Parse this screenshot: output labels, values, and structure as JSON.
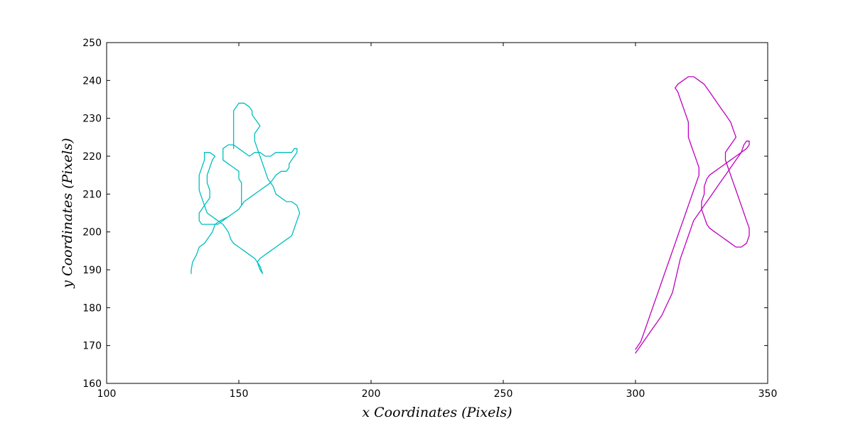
{
  "chart_data": {
    "type": "line",
    "title": "",
    "xlabel": "x Coordinates (Pixels)",
    "ylabel": "y Coordinates (Pixels)",
    "xlim": [
      100,
      350
    ],
    "ylim": [
      160,
      250
    ],
    "xticks": [
      100,
      150,
      200,
      250,
      300,
      350
    ],
    "yticks": [
      160,
      170,
      180,
      190,
      200,
      210,
      220,
      230,
      240,
      250
    ],
    "xtick_labels": [
      "100",
      "150",
      "200",
      "250",
      "300",
      "350"
    ],
    "ytick_labels": [
      "160",
      "170",
      "180",
      "190",
      "200",
      "210",
      "220",
      "230",
      "240",
      "250"
    ],
    "grid": false,
    "legend": "none",
    "series": [
      {
        "color": "#00bfbf",
        "points": [
          [
            132,
            189
          ],
          [
            132,
            190
          ],
          [
            132.5,
            192
          ],
          [
            134,
            194
          ],
          [
            135,
            196
          ],
          [
            137,
            197
          ],
          [
            139,
            199
          ],
          [
            140,
            200
          ],
          [
            141,
            202
          ],
          [
            143,
            203
          ],
          [
            146,
            204
          ],
          [
            148,
            205
          ],
          [
            150,
            206
          ],
          [
            152,
            208
          ],
          [
            154,
            209
          ],
          [
            156,
            210
          ],
          [
            158,
            211
          ],
          [
            160,
            212
          ],
          [
            162,
            213
          ],
          [
            164,
            215
          ],
          [
            166,
            216
          ],
          [
            168,
            216
          ],
          [
            169,
            217
          ],
          [
            169,
            218
          ],
          [
            170,
            219
          ],
          [
            171,
            220
          ],
          [
            172,
            221
          ],
          [
            172,
            222
          ],
          [
            171,
            222
          ],
          [
            170,
            221
          ],
          [
            168,
            221
          ],
          [
            166,
            221
          ],
          [
            164,
            221
          ],
          [
            162,
            220
          ],
          [
            160,
            220
          ],
          [
            158,
            221
          ],
          [
            156,
            221
          ],
          [
            154,
            220
          ],
          [
            152,
            221
          ],
          [
            150,
            222
          ],
          [
            148,
            223
          ],
          [
            146,
            223
          ],
          [
            144,
            222
          ],
          [
            144,
            221
          ],
          [
            144,
            219
          ],
          [
            146,
            218
          ],
          [
            148,
            217
          ],
          [
            150,
            216
          ],
          [
            150,
            214
          ],
          [
            151,
            213
          ],
          [
            151,
            211
          ],
          [
            151,
            209
          ],
          [
            151,
            207
          ],
          [
            150,
            206
          ],
          [
            148,
            205
          ],
          [
            146,
            204
          ],
          [
            144,
            203
          ],
          [
            142,
            202
          ],
          [
            140,
            202
          ],
          [
            138,
            202
          ],
          [
            136,
            202
          ],
          [
            135,
            203
          ],
          [
            135,
            205
          ],
          [
            136,
            206
          ],
          [
            137,
            207
          ],
          [
            138,
            208
          ],
          [
            139,
            209
          ],
          [
            139,
            211
          ],
          [
            138,
            213
          ],
          [
            138,
            215
          ],
          [
            139,
            217
          ],
          [
            140,
            219
          ],
          [
            141,
            220
          ],
          [
            139,
            221
          ],
          [
            137,
            221
          ],
          [
            137,
            219
          ],
          [
            136,
            217
          ],
          [
            135,
            215
          ],
          [
            135,
            213
          ],
          [
            135,
            211
          ],
          [
            136,
            209
          ],
          [
            137,
            207
          ],
          [
            138,
            205
          ],
          [
            140,
            204
          ],
          [
            142,
            203
          ],
          [
            144,
            202
          ],
          [
            145,
            201
          ],
          [
            146,
            200
          ],
          [
            147,
            198
          ],
          [
            148,
            197
          ],
          [
            150,
            196
          ],
          [
            152,
            195
          ],
          [
            154,
            194
          ],
          [
            156,
            193
          ],
          [
            157,
            192
          ],
          [
            158,
            190
          ],
          [
            159,
            189
          ],
          [
            158,
            191
          ],
          [
            157,
            192
          ],
          [
            158,
            193
          ],
          [
            160,
            194
          ],
          [
            162,
            195
          ],
          [
            164,
            196
          ],
          [
            166,
            197
          ],
          [
            168,
            198
          ],
          [
            170,
            199
          ],
          [
            171,
            201
          ],
          [
            172,
            203
          ],
          [
            173,
            205
          ],
          [
            172,
            207
          ],
          [
            170,
            208
          ],
          [
            168,
            208
          ],
          [
            166,
            209
          ],
          [
            164,
            210
          ],
          [
            163,
            212
          ],
          [
            162,
            213
          ],
          [
            161,
            214
          ],
          [
            160,
            216
          ],
          [
            159,
            218
          ],
          [
            158,
            220
          ],
          [
            157,
            222
          ],
          [
            156,
            224
          ],
          [
            156,
            226
          ],
          [
            157,
            227
          ],
          [
            158,
            228
          ],
          [
            157,
            229
          ],
          [
            156,
            230
          ],
          [
            155,
            231
          ],
          [
            155,
            232
          ],
          [
            154,
            233
          ],
          [
            152,
            234
          ],
          [
            150,
            234
          ],
          [
            149,
            233
          ],
          [
            148,
            232
          ],
          [
            148,
            230
          ],
          [
            148,
            228
          ],
          [
            148,
            226
          ],
          [
            148,
            224
          ],
          [
            148,
            222
          ]
        ]
      },
      {
        "color": "#bf00bf",
        "points": [
          [
            300,
            168
          ],
          [
            301,
            169
          ],
          [
            302,
            170
          ],
          [
            304,
            172
          ],
          [
            306,
            174
          ],
          [
            308,
            176
          ],
          [
            310,
            178
          ],
          [
            312,
            181
          ],
          [
            314,
            184
          ],
          [
            315,
            187
          ],
          [
            316,
            190
          ],
          [
            317,
            193
          ],
          [
            318,
            195
          ],
          [
            319,
            197
          ],
          [
            320,
            199
          ],
          [
            321,
            201
          ],
          [
            322,
            203
          ],
          [
            324,
            205
          ],
          [
            326,
            207
          ],
          [
            328,
            209
          ],
          [
            330,
            211
          ],
          [
            332,
            213
          ],
          [
            334,
            215
          ],
          [
            336,
            217
          ],
          [
            338,
            219
          ],
          [
            340,
            221
          ],
          [
            341,
            223
          ],
          [
            342,
            224
          ],
          [
            343,
            224
          ],
          [
            343,
            223
          ],
          [
            342,
            222
          ],
          [
            340,
            221
          ],
          [
            338,
            220
          ],
          [
            336,
            219
          ],
          [
            334,
            218
          ],
          [
            332,
            217
          ],
          [
            330,
            216
          ],
          [
            328,
            215
          ],
          [
            327,
            214
          ],
          [
            326,
            212
          ],
          [
            326,
            210
          ],
          [
            325,
            208
          ],
          [
            325,
            206
          ],
          [
            326,
            204
          ],
          [
            327,
            202
          ],
          [
            328,
            201
          ],
          [
            330,
            200
          ],
          [
            332,
            199
          ],
          [
            334,
            198
          ],
          [
            336,
            197
          ],
          [
            338,
            196
          ],
          [
            340,
            196
          ],
          [
            342,
            197
          ],
          [
            343,
            199
          ],
          [
            343,
            201
          ],
          [
            342,
            203
          ],
          [
            341,
            205
          ],
          [
            340,
            207
          ],
          [
            339,
            209
          ],
          [
            338,
            211
          ],
          [
            337,
            213
          ],
          [
            336,
            215
          ],
          [
            335,
            217
          ],
          [
            334,
            219
          ],
          [
            334,
            221
          ],
          [
            335,
            222
          ],
          [
            336,
            223
          ],
          [
            337,
            224
          ],
          [
            338,
            225
          ],
          [
            337,
            227
          ],
          [
            336,
            229
          ],
          [
            334,
            231
          ],
          [
            332,
            233
          ],
          [
            330,
            235
          ],
          [
            328,
            237
          ],
          [
            326,
            239
          ],
          [
            324,
            240
          ],
          [
            322,
            241
          ],
          [
            320,
            241
          ],
          [
            318,
            240
          ],
          [
            316,
            239
          ],
          [
            315,
            238
          ],
          [
            316,
            237
          ],
          [
            317,
            235
          ],
          [
            318,
            233
          ],
          [
            319,
            231
          ],
          [
            320,
            229
          ],
          [
            320,
            227
          ],
          [
            320,
            225
          ],
          [
            321,
            223
          ],
          [
            322,
            221
          ],
          [
            323,
            219
          ],
          [
            324,
            217
          ],
          [
            324,
            215
          ],
          [
            323,
            213
          ],
          [
            322,
            211
          ],
          [
            321,
            209
          ],
          [
            320,
            207
          ],
          [
            319,
            205
          ],
          [
            318,
            203
          ],
          [
            317,
            201
          ],
          [
            316,
            199
          ],
          [
            315,
            197
          ],
          [
            314,
            195
          ],
          [
            313,
            193
          ],
          [
            312,
            191
          ],
          [
            311,
            189
          ],
          [
            310,
            187
          ],
          [
            309,
            185
          ],
          [
            308,
            183
          ],
          [
            307,
            181
          ],
          [
            306,
            179
          ],
          [
            305,
            177
          ],
          [
            304,
            175
          ],
          [
            303,
            173
          ],
          [
            302,
            171
          ],
          [
            301,
            170
          ],
          [
            300,
            169
          ]
        ]
      }
    ]
  }
}
